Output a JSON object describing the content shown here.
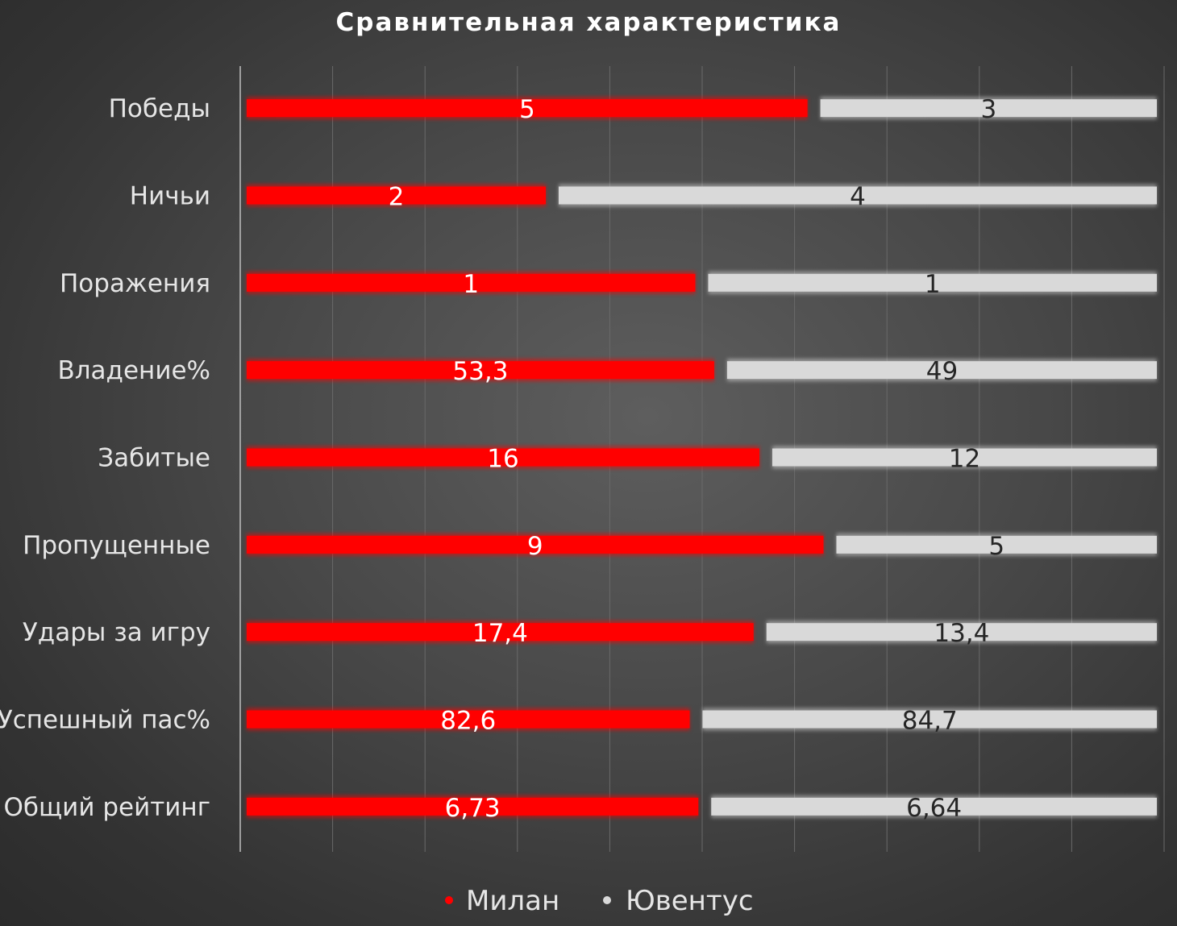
{
  "chart_data": {
    "type": "bar",
    "title": "Сравнительная характеристика",
    "categories": [
      "Победы",
      "Ничьи",
      "Поражения",
      "Владение%",
      "Забитые",
      "Пропущенные",
      "Удары за игру",
      "Успешный пас%",
      "Общий рейтинг"
    ],
    "series": [
      {
        "name": "Милан",
        "color": "#ff0000",
        "values": [
          5,
          2,
          1,
          53.3,
          16,
          9,
          17.4,
          82.6,
          6.73
        ],
        "labels": [
          "5",
          "2",
          "1",
          "53,3",
          "16",
          "9",
          "17,4",
          "82,6",
          "6,73"
        ]
      },
      {
        "name": "Ювентус",
        "color": "#d9d9d9",
        "values": [
          3,
          4,
          1,
          49,
          12,
          5,
          13.4,
          84.7,
          6.64
        ],
        "labels": [
          "3",
          "4",
          "1",
          "49",
          "12",
          "5",
          "13,4",
          "84,7",
          "6,64"
        ]
      }
    ],
    "stacking": "percent",
    "xlim": [
      0,
      100
    ],
    "grid": true,
    "legend_position": "bottom"
  }
}
